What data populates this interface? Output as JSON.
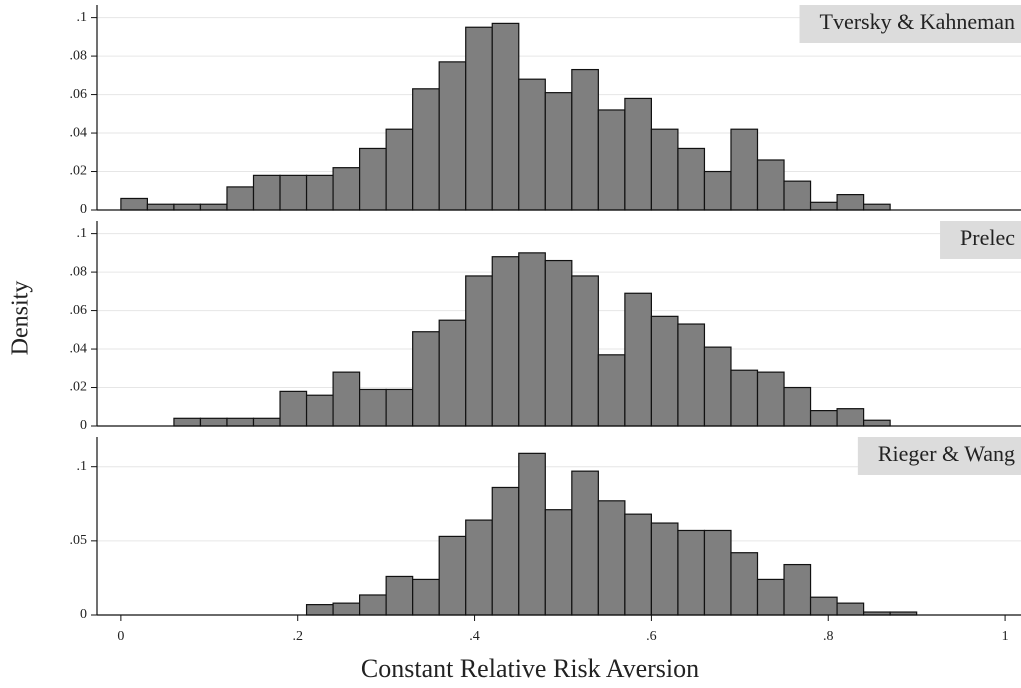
{
  "chart_data": [
    {
      "type": "histogram",
      "title": "Tversky & Kahneman",
      "color": "#7f7f7f",
      "grid": true,
      "bins": [
        0,
        0.03,
        0.06,
        0.09,
        0.12,
        0.15,
        0.18,
        0.21,
        0.24,
        0.27,
        0.3,
        0.33,
        0.36,
        0.39,
        0.42,
        0.45,
        0.48,
        0.51,
        0.54,
        0.57,
        0.6,
        0.63,
        0.66,
        0.69,
        0.72,
        0.75,
        0.78,
        0.81,
        0.84,
        0.87
      ],
      "values": [
        0.006,
        0.003,
        0.003,
        0.003,
        0.012,
        0.018,
        0.018,
        0.018,
        0.022,
        0.032,
        0.042,
        0.063,
        0.077,
        0.095,
        0.097,
        0.068,
        0.061,
        0.073,
        0.052,
        0.058,
        0.042,
        0.032,
        0.02,
        0.042,
        0.026,
        0.015,
        0.004,
        0.008,
        0.003
      ],
      "xlim": [
        -0.027,
        1.018
      ],
      "ylim": [
        0,
        0.105
      ],
      "yticks": [
        0,
        {
          "value": 0.02,
          "label": ".02"
        },
        {
          "value": 0.04,
          "label": ".04"
        },
        {
          "value": 0.06,
          "label": ".06"
        },
        {
          "value": 0.08,
          "label": ".08"
        },
        {
          "value": 0.1,
          "label": ".1"
        }
      ]
    },
    {
      "type": "histogram",
      "title": "Prelec",
      "color": "#7f7f7f",
      "grid": true,
      "ylabel": "Density",
      "bins": [
        0.06,
        0.09,
        0.12,
        0.15,
        0.18,
        0.21,
        0.24,
        0.27,
        0.3,
        0.33,
        0.36,
        0.39,
        0.42,
        0.45,
        0.48,
        0.51,
        0.54,
        0.57,
        0.6,
        0.63,
        0.66,
        0.69,
        0.72,
        0.75,
        0.78,
        0.81,
        0.84,
        0.87
      ],
      "values": [
        0.004,
        0.004,
        0.004,
        0.004,
        0.018,
        0.016,
        0.028,
        0.019,
        0.019,
        0.049,
        0.055,
        0.078,
        0.088,
        0.09,
        0.086,
        0.078,
        0.037,
        0.069,
        0.057,
        0.053,
        0.041,
        0.029,
        0.028,
        0.02,
        0.008,
        0.009,
        0.003
      ],
      "xlim": [
        -0.027,
        1.018
      ],
      "ylim": [
        0,
        0.105
      ],
      "yticks": [
        0,
        {
          "value": 0.02,
          "label": ".02"
        },
        {
          "value": 0.04,
          "label": ".04"
        },
        {
          "value": 0.06,
          "label": ".06"
        },
        {
          "value": 0.08,
          "label": ".08"
        },
        {
          "value": 0.1,
          "label": ".1"
        }
      ]
    },
    {
      "type": "histogram",
      "title": "Rieger & Wang",
      "color": "#7f7f7f",
      "grid": true,
      "xlabel": "Constant Relative Risk Aversion",
      "bins": [
        0.21,
        0.24,
        0.27,
        0.3,
        0.33,
        0.36,
        0.39,
        0.42,
        0.45,
        0.48,
        0.51,
        0.54,
        0.57,
        0.6,
        0.63,
        0.66,
        0.69,
        0.72,
        0.75,
        0.78,
        0.81,
        0.84,
        0.87,
        0.9
      ],
      "values": [
        0.007,
        0.008,
        0.0135,
        0.026,
        0.024,
        0.053,
        0.064,
        0.086,
        0.109,
        0.071,
        0.097,
        0.077,
        0.068,
        0.062,
        0.057,
        0.057,
        0.042,
        0.024,
        0.034,
        0.012,
        0.008,
        0.002,
        0.002
      ],
      "xlim": [
        -0.027,
        1.018
      ],
      "ylim": [
        0,
        0.118
      ],
      "xticks": [
        0,
        {
          "value": 0.2,
          "label": ".2"
        },
        {
          "value": 0.4,
          "label": ".4"
        },
        {
          "value": 0.6,
          "label": ".6"
        },
        {
          "value": 0.8,
          "label": ".8"
        },
        1
      ],
      "yticks": [
        0,
        {
          "value": 0.05,
          "label": ".05"
        },
        {
          "value": 0.1,
          "label": ".1"
        }
      ]
    }
  ]
}
